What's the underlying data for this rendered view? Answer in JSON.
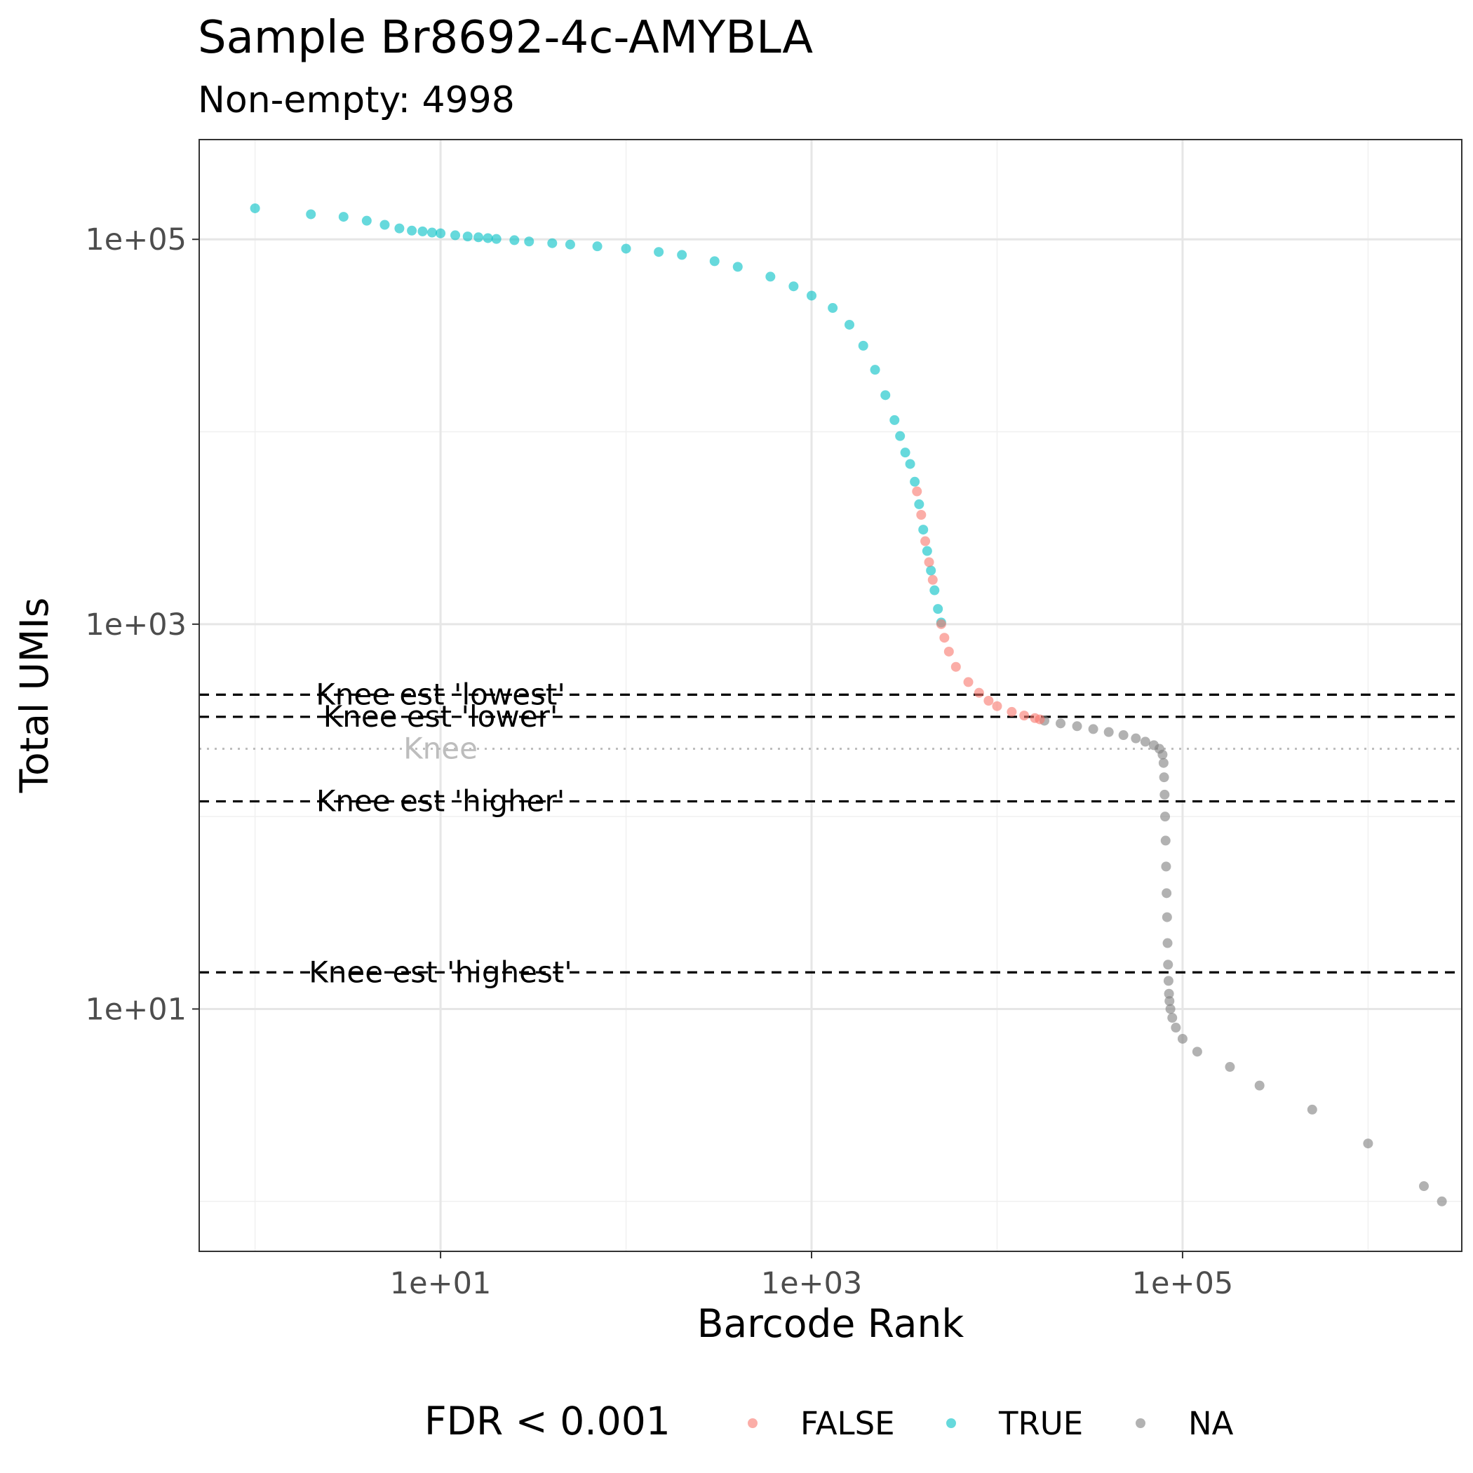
{
  "chart_data": {
    "type": "scatter",
    "title": "Sample Br8692-4c-AMYBLA",
    "subtitle": "Non-empty: 4998",
    "xlabel": "Barcode Rank",
    "ylabel": "Total UMIs",
    "x_scale": "log10",
    "y_scale": "log10",
    "xlim": [
      0.5,
      3200000
    ],
    "ylim": [
      0.55,
      330000
    ],
    "x_ticks": [
      10,
      1000,
      100000
    ],
    "x_tick_labels": [
      "1e+01",
      "1e+03",
      "1e+05"
    ],
    "y_ticks": [
      10,
      1000,
      100000
    ],
    "y_tick_labels": [
      "1e+01",
      "1e+03",
      "1e+05"
    ],
    "grid": true,
    "legend": {
      "title": "FDR < 0.001",
      "position": "bottom",
      "entries": [
        {
          "label": "FALSE",
          "color": "#F8766D"
        },
        {
          "label": "TRUE",
          "color": "#00BFC4"
        },
        {
          "label": "NA",
          "color": "#7f7f7f"
        }
      ]
    },
    "reference_lines": [
      {
        "label": "Knee est 'lowest'",
        "y": 430,
        "style": "dashed",
        "color": "#000000"
      },
      {
        "label": "Knee est 'lower'",
        "y": 330,
        "style": "dashed",
        "color": "#000000"
      },
      {
        "label": "Knee",
        "y": 225,
        "style": "dotted",
        "color": "#bdbdbd"
      },
      {
        "label": "Knee est 'higher'",
        "y": 120,
        "style": "dashed",
        "color": "#000000"
      },
      {
        "label": "Knee est 'highest'",
        "y": 15.5,
        "style": "dashed",
        "color": "#000000"
      }
    ],
    "series": [
      {
        "name": "TRUE",
        "color": "#00BFC4",
        "points": [
          [
            1,
            145000
          ],
          [
            2,
            135000
          ],
          [
            3,
            131000
          ],
          [
            4,
            125000
          ],
          [
            5,
            119000
          ],
          [
            6,
            114000
          ],
          [
            7,
            111000
          ],
          [
            8,
            110000
          ],
          [
            9,
            108500
          ],
          [
            10,
            107500
          ],
          [
            12,
            105000
          ],
          [
            14,
            103500
          ],
          [
            16,
            102500
          ],
          [
            18,
            101500
          ],
          [
            20,
            100500
          ],
          [
            25,
            99000
          ],
          [
            30,
            97500
          ],
          [
            40,
            95500
          ],
          [
            50,
            94000
          ],
          [
            70,
            92000
          ],
          [
            100,
            89500
          ],
          [
            150,
            86000
          ],
          [
            200,
            83000
          ],
          [
            300,
            77000
          ],
          [
            400,
            72000
          ],
          [
            600,
            64000
          ],
          [
            800,
            57000
          ],
          [
            1000,
            51000
          ],
          [
            1300,
            44000
          ],
          [
            1600,
            36000
          ],
          [
            1900,
            28000
          ],
          [
            2200,
            21000
          ],
          [
            2500,
            15500
          ],
          [
            2800,
            11500
          ],
          [
            3000,
            9500
          ],
          [
            3200,
            7800
          ],
          [
            3400,
            6800
          ],
          [
            3600,
            5500
          ],
          [
            3800,
            4200
          ],
          [
            4000,
            3100
          ],
          [
            4200,
            2400
          ],
          [
            4400,
            1900
          ],
          [
            4600,
            1500
          ],
          [
            4800,
            1200
          ],
          [
            4998,
            1020
          ]
        ]
      },
      {
        "name": "FALSE",
        "color": "#F8766D",
        "points": [
          [
            3700,
            4900
          ],
          [
            3900,
            3700
          ],
          [
            4100,
            2700
          ],
          [
            4300,
            2100
          ],
          [
            4500,
            1700
          ],
          [
            5000,
            1000
          ],
          [
            5200,
            850
          ],
          [
            5500,
            720
          ],
          [
            6000,
            600
          ],
          [
            7000,
            500
          ],
          [
            8000,
            440
          ],
          [
            9000,
            400
          ],
          [
            10000,
            375
          ],
          [
            12000,
            350
          ],
          [
            14000,
            335
          ],
          [
            16000,
            325
          ],
          [
            17000,
            320
          ]
        ]
      },
      {
        "name": "NA",
        "color": "#7f7f7f",
        "points": [
          [
            18000,
            315
          ],
          [
            22000,
            305
          ],
          [
            27000,
            295
          ],
          [
            33000,
            285
          ],
          [
            40000,
            275
          ],
          [
            48000,
            265
          ],
          [
            56000,
            255
          ],
          [
            63000,
            245
          ],
          [
            70000,
            235
          ],
          [
            75000,
            225
          ],
          [
            78000,
            210
          ],
          [
            79000,
            190
          ],
          [
            79500,
            160
          ],
          [
            80000,
            130
          ],
          [
            80500,
            100
          ],
          [
            81000,
            75
          ],
          [
            81500,
            55
          ],
          [
            82000,
            40
          ],
          [
            82500,
            30
          ],
          [
            83000,
            22
          ],
          [
            83500,
            17
          ],
          [
            84000,
            14
          ],
          [
            84500,
            12
          ],
          [
            85000,
            11
          ],
          [
            86000,
            10
          ],
          [
            88000,
            9
          ],
          [
            92000,
            8
          ],
          [
            100000,
            7
          ],
          [
            120000,
            6
          ],
          [
            180000,
            5
          ],
          [
            260000,
            4
          ],
          [
            500000,
            3
          ],
          [
            1000000,
            2
          ],
          [
            2000000,
            1.2
          ],
          [
            2500000,
            1
          ]
        ]
      }
    ]
  }
}
